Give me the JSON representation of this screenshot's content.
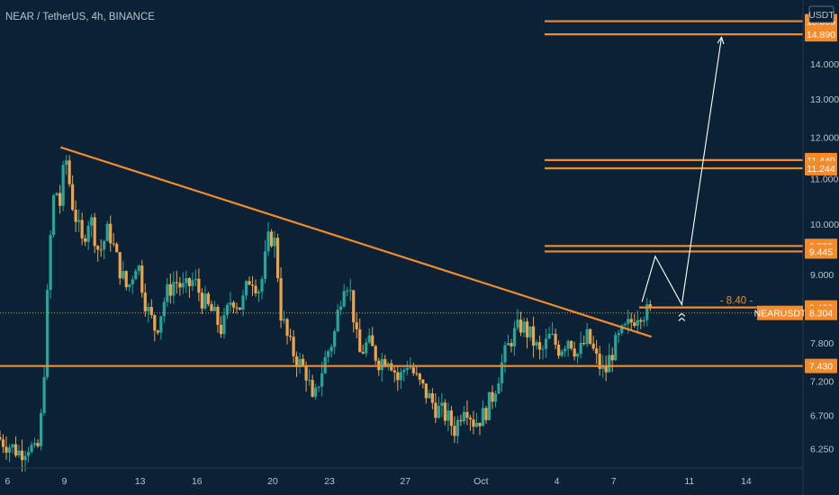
{
  "header": {
    "symbol_title": "NEAR / TetherUS, 4h, BINANCE",
    "currency": "USDT"
  },
  "colors": {
    "background": "#0b2236",
    "up": "#26a69a",
    "down": "#f0a24a",
    "level": "#f28b2c",
    "axis_text": "#b8c3cc",
    "projection": "#ffffff"
  },
  "chart_data": {
    "type": "candlestick",
    "title": "NEAR / TetherUS, 4h, BINANCE",
    "y_axis": {
      "ticks": [
        "6.250",
        "6.700",
        "7.200",
        "7.800",
        "9.000",
        "10.000",
        "11.000",
        "12.000",
        "13.000",
        "14.000"
      ],
      "scale": "log",
      "ylim": [
        6.0,
        16.0
      ]
    },
    "x_axis": {
      "ticks": [
        {
          "label": "6",
          "day": 6
        },
        {
          "label": "9",
          "day": 9
        },
        {
          "label": "13",
          "day": 13
        },
        {
          "label": "16",
          "day": 16
        },
        {
          "label": "20",
          "day": 20
        },
        {
          "label": "23",
          "day": 23
        },
        {
          "label": "27",
          "day": 27
        },
        {
          "label": "Oct",
          "day": 31
        },
        {
          "label": "4",
          "day": 35
        },
        {
          "label": "7",
          "day": 38
        },
        {
          "label": "11",
          "day": 42
        },
        {
          "label": "14",
          "day": 45
        }
      ],
      "xlim": [
        5.6,
        48.0
      ]
    },
    "levels": [
      {
        "label": "15.305",
        "value": 15.305
      },
      {
        "label": "14.890",
        "value": 14.89
      },
      {
        "label": "11.440",
        "value": 11.44
      },
      {
        "label": "11.244",
        "value": 11.244
      },
      {
        "label": "9.555",
        "value": 9.555
      },
      {
        "label": "9.445",
        "value": 9.445
      },
      {
        "label": "8.400",
        "value": 8.4
      },
      {
        "label": "7.430",
        "value": 7.43
      }
    ],
    "current_price": {
      "symbol": "NEARUSDT",
      "value": "8.304",
      "numeric": 8.304
    },
    "entry_annotation": {
      "text": "- 8.40 -",
      "value": 8.4
    },
    "trendline": {
      "from": {
        "day": 8.8,
        "price": 11.75
      },
      "to": {
        "day": 40.0,
        "price": 7.9
      }
    },
    "projection_path": [
      {
        "day": 39.5,
        "price": 8.5
      },
      {
        "day": 40.2,
        "price": 9.35
      },
      {
        "day": 41.6,
        "price": 8.45
      },
      {
        "day": 43.7,
        "price": 14.8
      }
    ],
    "price_path": [
      [
        5.6,
        6.4
      ],
      [
        6.2,
        6.3
      ],
      [
        6.8,
        6.2
      ],
      [
        7.3,
        6.3
      ],
      [
        7.7,
        6.15
      ],
      [
        7.9,
        6.5
      ],
      [
        8.1,
        7.4
      ],
      [
        8.3,
        8.8
      ],
      [
        8.5,
        10.2
      ],
      [
        8.7,
        10.9
      ],
      [
        8.9,
        10.3
      ],
      [
        9.1,
        11.1
      ],
      [
        9.3,
        11.5
      ],
      [
        9.5,
        10.6
      ],
      [
        9.8,
        10.1
      ],
      [
        10.1,
        9.6
      ],
      [
        10.5,
        10.2
      ],
      [
        11.0,
        9.4
      ],
      [
        11.5,
        9.9
      ],
      [
        12.0,
        9.2
      ],
      [
        12.5,
        8.7
      ],
      [
        13.0,
        9.3
      ],
      [
        13.5,
        8.4
      ],
      [
        14.0,
        8.0
      ],
      [
        14.5,
        8.6
      ],
      [
        15.0,
        8.9
      ],
      [
        15.5,
        8.7
      ],
      [
        16.0,
        8.9
      ],
      [
        16.5,
        8.5
      ],
      [
        17.0,
        8.3
      ],
      [
        17.5,
        8.0
      ],
      [
        18.0,
        8.6
      ],
      [
        18.5,
        8.4
      ],
      [
        19.0,
        9.0
      ],
      [
        19.5,
        8.7
      ],
      [
        20.0,
        9.8
      ],
      [
        20.3,
        9.6
      ],
      [
        20.6,
        8.3
      ],
      [
        21.0,
        7.8
      ],
      [
        21.5,
        7.5
      ],
      [
        22.0,
        7.3
      ],
      [
        22.3,
        6.8
      ],
      [
        22.6,
        7.2
      ],
      [
        23.0,
        7.6
      ],
      [
        23.4,
        7.9
      ],
      [
        23.7,
        8.5
      ],
      [
        24.0,
        9.0
      ],
      [
        24.3,
        8.6
      ],
      [
        24.7,
        7.6
      ],
      [
        25.2,
        7.8
      ],
      [
        25.8,
        7.5
      ],
      [
        26.3,
        7.6
      ],
      [
        26.8,
        7.2
      ],
      [
        27.3,
        7.5
      ],
      [
        27.8,
        7.2
      ],
      [
        28.3,
        7.0
      ],
      [
        28.8,
        6.8
      ],
      [
        29.3,
        6.7
      ],
      [
        29.8,
        6.5
      ],
      [
        30.3,
        6.9
      ],
      [
        30.8,
        6.6
      ],
      [
        31.3,
        6.7
      ],
      [
        31.8,
        7.0
      ],
      [
        32.3,
        7.5
      ],
      [
        32.8,
        7.9
      ],
      [
        33.3,
        8.1
      ],
      [
        33.8,
        7.9
      ],
      [
        34.3,
        7.6
      ],
      [
        34.8,
        7.9
      ],
      [
        35.3,
        7.7
      ],
      [
        35.8,
        7.9
      ],
      [
        36.3,
        7.6
      ],
      [
        36.8,
        7.9
      ],
      [
        37.3,
        7.5
      ],
      [
        37.7,
        7.3
      ],
      [
        38.0,
        7.6
      ],
      [
        38.5,
        7.9
      ],
      [
        39.0,
        8.1
      ],
      [
        39.5,
        8.35
      ],
      [
        40.0,
        8.3
      ]
    ]
  }
}
